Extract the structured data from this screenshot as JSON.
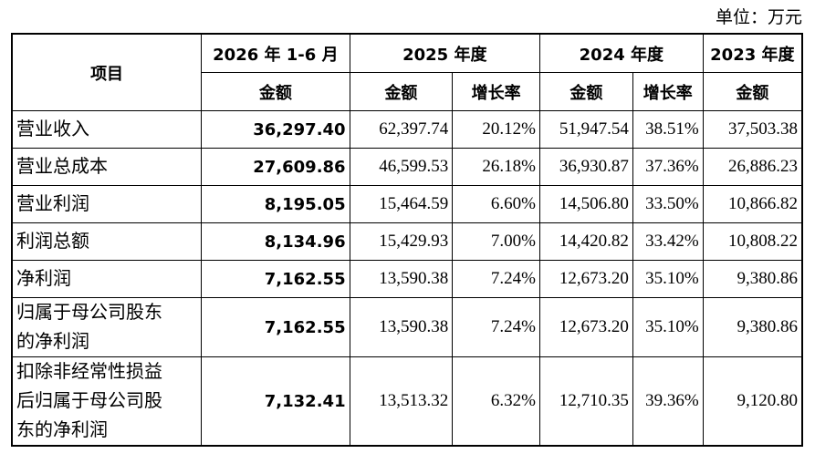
{
  "unit": "单位：万元",
  "table": {
    "header": {
      "item": "项目",
      "periods": [
        "2026 年 1-6 月",
        "2025 年度",
        "2024 年度",
        "2023 年度"
      ],
      "subheaders": [
        "金额",
        "金额",
        "增长率",
        "金额",
        "增长率",
        "金额"
      ]
    },
    "rows": [
      [
        "营业收入",
        "36,297.40",
        "62,397.74",
        "20.12%",
        "51,947.54",
        "38.51%",
        "37,503.38"
      ],
      [
        "营业总成本",
        "27,609.86",
        "46,599.53",
        "26.18%",
        "36,930.87",
        "37.36%",
        "26,886.23"
      ],
      [
        "营业利润",
        "8,195.05",
        "15,464.59",
        "6.60%",
        "14,506.80",
        "33.50%",
        "10,866.82"
      ],
      [
        "利润总额",
        "8,134.96",
        "15,429.93",
        "7.00%",
        "14,420.82",
        "33.42%",
        "10,808.22"
      ],
      [
        "净利润",
        "7,162.55",
        "13,590.38",
        "7.24%",
        "12,673.20",
        "35.10%",
        "9,380.86"
      ],
      [
        "归属于母公司股东的净利润",
        "7,162.55",
        "13,590.38",
        "7.24%",
        "12,673.20",
        "35.10%",
        "9,380.86"
      ],
      [
        "扣除非经常性损益后归属于母公司股东的净利润",
        "7,132.41",
        "13,513.32",
        "6.32%",
        "12,710.35",
        "39.36%",
        "9,120.80"
      ]
    ]
  }
}
